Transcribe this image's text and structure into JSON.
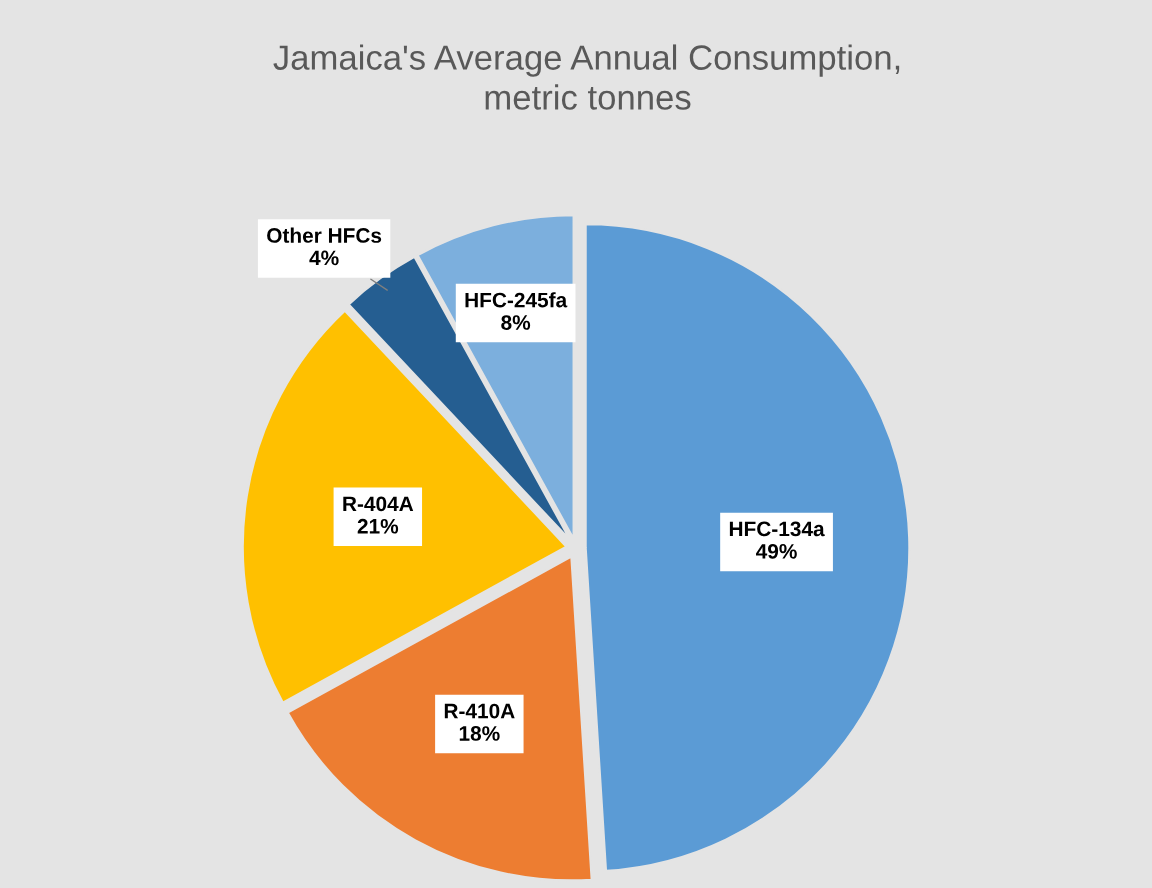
{
  "chart_data": {
    "type": "pie",
    "title": "Jamaica's Average Annual Consumption,\nmetric tonnes",
    "categories": [
      "HFC-134a",
      "R-410A",
      "R-404A",
      "Other HFCs",
      "HFC-245fa"
    ],
    "values": [
      49,
      18,
      21,
      4,
      8
    ],
    "colors": [
      "#5b9bd5",
      "#ed7d31",
      "#ffc000",
      "#255e91",
      "#7cafdd"
    ],
    "value_labels": [
      "49%",
      "18%",
      "21%",
      "4%",
      "8%"
    ],
    "legend": false
  }
}
